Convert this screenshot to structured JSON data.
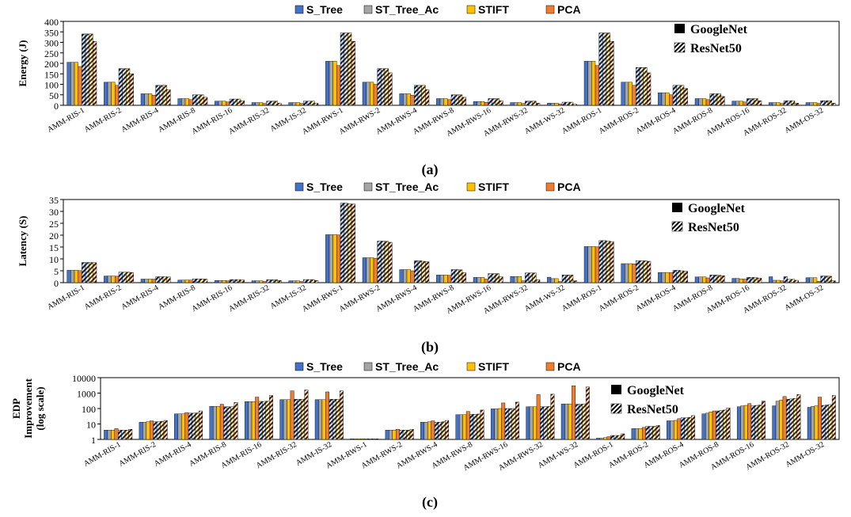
{
  "legend": {
    "methods": [
      {
        "name": "S_Tree",
        "color": "#4472C4"
      },
      {
        "name": "ST_Tree_Ac",
        "color": "#A5A5A5"
      },
      {
        "name": "STIFT",
        "color": "#FFC000"
      },
      {
        "name": "PCA",
        "color": "#ED7D31"
      }
    ],
    "series": [
      {
        "name": "GoogleNet",
        "style": "solid"
      },
      {
        "name": "ResNet50",
        "style": "hatched"
      }
    ]
  },
  "chart_data": [
    {
      "type": "bar",
      "panel_label": "(a)",
      "ylabel": "Energy (J)",
      "ylim": [
        0,
        400
      ],
      "yticks": [
        "0",
        "50",
        "100",
        "150",
        "200",
        "250",
        "300",
        "350",
        "400"
      ],
      "scale": "linear",
      "categories": [
        "AMM-RIS-1",
        "AMM-RIS-2",
        "AMM-RIS-4",
        "AMM-RIS-8",
        "AMM-RIS-16",
        "AMM-RIS-32",
        "AMM-IS-32",
        "AMM-RWS-1",
        "AMM-RWS-2",
        "AMM-RWS-4",
        "AMM-RWS-8",
        "AMM-RWS-16",
        "AMM-RWS-32",
        "AMM-WS-32",
        "AMM-ROS-1",
        "AMM-ROS-2",
        "AMM-ROS-4",
        "AMM-ROS-8",
        "AMM-ROS-16",
        "AMM-ROS-32",
        "AMM-OS-32"
      ],
      "series": [
        {
          "network": "GoogleNet",
          "method": "S_Tree",
          "values": [
            205,
            110,
            55,
            32,
            20,
            13,
            13,
            210,
            110,
            55,
            32,
            18,
            13,
            10,
            210,
            110,
            60,
            32,
            20,
            13,
            13
          ]
        },
        {
          "network": "GoogleNet",
          "method": "ST_Tree_Ac",
          "values": [
            205,
            110,
            55,
            32,
            20,
            13,
            13,
            210,
            110,
            55,
            32,
            18,
            13,
            10,
            210,
            110,
            60,
            32,
            20,
            13,
            13
          ]
        },
        {
          "network": "GoogleNet",
          "method": "STIFT",
          "values": [
            205,
            110,
            55,
            32,
            20,
            13,
            13,
            210,
            110,
            55,
            32,
            18,
            13,
            10,
            210,
            110,
            60,
            32,
            20,
            13,
            13
          ]
        },
        {
          "network": "GoogleNet",
          "method": "PCA",
          "values": [
            185,
            95,
            48,
            27,
            16,
            9,
            9,
            190,
            100,
            48,
            27,
            14,
            9,
            6,
            190,
            95,
            50,
            27,
            16,
            9,
            9
          ]
        },
        {
          "network": "ResNet50",
          "method": "S_Tree",
          "values": [
            340,
            175,
            95,
            50,
            30,
            20,
            20,
            345,
            175,
            95,
            50,
            32,
            20,
            15,
            345,
            180,
            95,
            55,
            32,
            22,
            22
          ]
        },
        {
          "network": "ResNet50",
          "method": "ST_Tree_Ac",
          "values": [
            340,
            175,
            95,
            50,
            30,
            20,
            20,
            345,
            175,
            95,
            50,
            32,
            20,
            15,
            345,
            180,
            95,
            55,
            32,
            22,
            22
          ]
        },
        {
          "network": "ResNet50",
          "method": "STIFT",
          "values": [
            340,
            175,
            95,
            50,
            30,
            20,
            20,
            345,
            175,
            95,
            50,
            32,
            20,
            15,
            345,
            180,
            95,
            55,
            32,
            22,
            22
          ]
        },
        {
          "network": "ResNet50",
          "method": "PCA",
          "values": [
            305,
            150,
            75,
            38,
            22,
            10,
            10,
            305,
            155,
            75,
            38,
            22,
            10,
            5,
            305,
            155,
            80,
            42,
            22,
            10,
            10
          ]
        }
      ]
    },
    {
      "type": "bar",
      "panel_label": "(b)",
      "ylabel": "Latency (S)",
      "ylim": [
        0,
        35
      ],
      "yticks": [
        "0",
        "5",
        "10",
        "15",
        "20",
        "25",
        "30",
        "35"
      ],
      "scale": "linear",
      "categories": [
        "AMM-RIS-1",
        "AMM-RIS-2",
        "AMM-RIS-4",
        "AMM-RIS-8",
        "AMM-RIS-16",
        "AMM-RIS-32",
        "AMM-IS-32",
        "AMM-RWS-1",
        "AMM-RWS-2",
        "AMM-RWS-4",
        "AMM-RWS-8",
        "AMM-RWS-16",
        "AMM-RWS-32",
        "AMM-WS-32",
        "AMM-ROS-1",
        "AMM-ROS-2",
        "AMM-ROS-4",
        "AMM-ROS-8",
        "AMM-ROS-16",
        "AMM-ROS-32",
        "AMM-OS-32"
      ],
      "series": [
        {
          "network": "GoogleNet",
          "method": "S_Tree",
          "values": [
            5.2,
            2.8,
            1.5,
            1.1,
            0.9,
            0.8,
            0.8,
            20.2,
            10.5,
            5.5,
            3.2,
            2.2,
            2.6,
            2.3,
            15.2,
            8.0,
            4.3,
            2.4,
            1.8,
            2.5,
            2.1
          ]
        },
        {
          "network": "GoogleNet",
          "method": "ST_Tree_Ac",
          "values": [
            5.2,
            2.8,
            1.5,
            1.1,
            0.9,
            0.8,
            0.8,
            20.2,
            10.5,
            5.5,
            3.2,
            2.2,
            2.6,
            1.7,
            15.2,
            8.0,
            4.3,
            2.4,
            1.8,
            1.0,
            2.1
          ]
        },
        {
          "network": "GoogleNet",
          "method": "STIFT",
          "values": [
            5.2,
            2.8,
            1.5,
            1.1,
            0.9,
            0.8,
            0.8,
            20.2,
            10.5,
            5.5,
            3.2,
            2.2,
            2.6,
            1.7,
            15.2,
            8.0,
            4.3,
            2.4,
            1.6,
            1.0,
            2.1
          ]
        },
        {
          "network": "GoogleNet",
          "method": "PCA",
          "values": [
            5.1,
            2.7,
            1.5,
            1.1,
            0.8,
            0.5,
            0.5,
            20.1,
            10.3,
            5.0,
            3.1,
            1.5,
            0.8,
            0.5,
            15.1,
            7.9,
            4.2,
            2.0,
            1.5,
            0.8,
            0.6
          ]
        },
        {
          "network": "ResNet50",
          "method": "S_Tree",
          "values": [
            8.5,
            4.4,
            2.5,
            1.6,
            1.3,
            1.2,
            1.3,
            33.5,
            17.5,
            9.2,
            5.5,
            3.8,
            4.1,
            3.2,
            17.7,
            9.2,
            5.2,
            3.2,
            2.2,
            2.5,
            2.8
          ]
        },
        {
          "network": "ResNet50",
          "method": "ST_Tree_Ac",
          "values": [
            8.5,
            4.4,
            2.5,
            1.6,
            1.3,
            1.2,
            1.3,
            33.5,
            17.5,
            9.2,
            5.5,
            3.8,
            4.1,
            3.2,
            17.7,
            9.2,
            5.2,
            3.2,
            2.2,
            1.4,
            2.8
          ]
        },
        {
          "network": "ResNet50",
          "method": "STIFT",
          "values": [
            8.5,
            4.4,
            2.5,
            1.6,
            1.3,
            1.2,
            1.3,
            33.2,
            17.4,
            9.0,
            5.4,
            3.8,
            4.1,
            3.2,
            17.5,
            9.2,
            5.0,
            3.1,
            2.1,
            1.4,
            2.7
          ]
        },
        {
          "network": "ResNet50",
          "method": "PCA",
          "values": [
            8.4,
            4.3,
            2.4,
            1.5,
            1.1,
            0.9,
            0.9,
            33.1,
            17.0,
            8.8,
            4.2,
            2.4,
            1.2,
            0.8,
            17.3,
            9.0,
            4.8,
            2.9,
            1.9,
            1.0,
            0.8
          ]
        }
      ]
    },
    {
      "type": "bar",
      "panel_label": "(c)",
      "ylabel": [
        "EDP",
        "Improvement",
        "(log scale)"
      ],
      "ylim": [
        1,
        10000
      ],
      "yticks": [
        "1",
        "10",
        "100",
        "1000",
        "10000"
      ],
      "scale": "log",
      "categories": [
        "AMM-RIS-1",
        "AMM-RIS-2",
        "AMM-RIS-4",
        "AMM-RIS-8",
        "AMM-RIS-16",
        "AMM-RIS-32",
        "AMM-IS-32",
        "AMM-RWS-1",
        "AMM-RWS-2",
        "AMM-RWS-4",
        "AMM-RWS-8",
        "AMM-RWS-16",
        "AMM-RWS-32",
        "AMM-WS-32",
        "AMM-ROS-1",
        "AMM-ROS-2",
        "AMM-ROS-4",
        "AMM-ROS-8",
        "AMM-ROS-16",
        "AMM-ROS-32",
        "AMM-OS-32"
      ],
      "series": [
        {
          "network": "GoogleNet",
          "method": "S_Tree",
          "values": [
            4,
            13,
            45,
            140,
            280,
            380,
            380,
            1.1,
            4,
            13,
            40,
            95,
            130,
            200,
            1.2,
            5,
            16,
            45,
            130,
            150,
            120
          ]
        },
        {
          "network": "GoogleNet",
          "method": "ST_Tree_Ac",
          "values": [
            4,
            13,
            45,
            140,
            280,
            380,
            380,
            1.1,
            4,
            13,
            40,
            95,
            130,
            200,
            1.2,
            5,
            16,
            50,
            150,
            300,
            140
          ]
        },
        {
          "network": "GoogleNet",
          "method": "STIFT",
          "values": [
            4,
            14,
            45,
            140,
            280,
            380,
            380,
            1.1,
            4,
            14,
            40,
            100,
            130,
            200,
            1.3,
            5,
            17,
            60,
            160,
            350,
            150
          ]
        },
        {
          "network": "GoogleNet",
          "method": "PCA",
          "values": [
            5,
            16,
            55,
            190,
            550,
            1400,
            1200,
            1.1,
            4.5,
            16,
            65,
            230,
            800,
            3000,
            1.5,
            6,
            22,
            70,
            210,
            600,
            550
          ]
        },
        {
          "network": "ResNet50",
          "method": "S_Tree",
          "values": [
            4,
            14,
            50,
            130,
            290,
            400,
            400,
            1.1,
            4,
            13,
            42,
            100,
            130,
            190,
            1.8,
            7,
            25,
            70,
            150,
            400,
            160
          ]
        },
        {
          "network": "ResNet50",
          "method": "ST_Tree_Ac",
          "values": [
            4,
            14,
            50,
            130,
            290,
            400,
            400,
            1.1,
            4,
            13,
            42,
            100,
            130,
            190,
            1.8,
            7,
            25,
            75,
            160,
            420,
            170
          ]
        },
        {
          "network": "ResNet50",
          "method": "STIFT",
          "values": [
            4,
            15,
            52,
            130,
            300,
            400,
            400,
            1.1,
            4,
            14,
            44,
            100,
            135,
            200,
            1.8,
            7,
            27,
            80,
            170,
            450,
            180
          ]
        },
        {
          "network": "ResNet50",
          "method": "PCA",
          "values": [
            4.5,
            17,
            70,
            250,
            700,
            1600,
            1400,
            1.1,
            4.5,
            17,
            80,
            260,
            850,
            2500,
            2.3,
            8,
            35,
            110,
            300,
            800,
            700
          ]
        }
      ]
    }
  ]
}
